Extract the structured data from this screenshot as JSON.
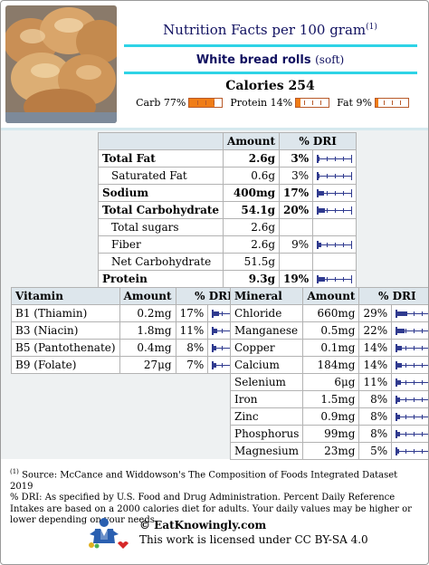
{
  "header": {
    "title": "Nutrition Facts per 100 gram",
    "title_ref": "(1)",
    "food_name": "White bread rolls",
    "food_variant": "(soft)",
    "calories": "Calories 254",
    "macros": [
      {
        "label": "Carb 77%",
        "percent": 77,
        "color": "#f07c16"
      },
      {
        "label": "Protein 14%",
        "percent": 14,
        "color": "#f07c16"
      },
      {
        "label": "Fat 9%",
        "percent": 9,
        "color": "#f07c16"
      }
    ]
  },
  "main_table": {
    "headers": [
      "",
      "Amount",
      "% DRI"
    ],
    "rows": [
      {
        "name": "Total Fat",
        "amount": "2.6g",
        "dri": "3%",
        "dri_value": 3,
        "bold": true,
        "indent": false
      },
      {
        "name": "Saturated Fat",
        "amount": "0.6g",
        "dri": "3%",
        "dri_value": 3,
        "bold": false,
        "indent": true
      },
      {
        "name": "Sodium",
        "amount": "400mg",
        "dri": "17%",
        "dri_value": 17,
        "bold": true,
        "indent": false
      },
      {
        "name": "Total Carbohydrate",
        "amount": "54.1g",
        "dri": "20%",
        "dri_value": 20,
        "bold": true,
        "indent": false
      },
      {
        "name": "Total sugars",
        "amount": "2.6g",
        "dri": "",
        "dri_value": null,
        "bold": false,
        "indent": true
      },
      {
        "name": "Fiber",
        "amount": "2.6g",
        "dri": "9%",
        "dri_value": 9,
        "bold": false,
        "indent": true
      },
      {
        "name": "Net Carbohydrate",
        "amount": "51.5g",
        "dri": "",
        "dri_value": null,
        "bold": false,
        "indent": true
      },
      {
        "name": "Protein",
        "amount": "9.3g",
        "dri": "19%",
        "dri_value": 19,
        "bold": true,
        "indent": false
      }
    ]
  },
  "vitamin_table": {
    "headers": [
      "Vitamin",
      "Amount",
      "% DRI"
    ],
    "rows": [
      {
        "name": "B1 (Thiamin)",
        "amount": "0.2mg",
        "dri": "17%",
        "dri_value": 17
      },
      {
        "name": "B3 (Niacin)",
        "amount": "1.8mg",
        "dri": "11%",
        "dri_value": 11
      },
      {
        "name": "B5 (Pantothenate)",
        "amount": "0.4mg",
        "dri": "8%",
        "dri_value": 8
      },
      {
        "name": "B9 (Folate)",
        "amount": "27μg",
        "dri": "7%",
        "dri_value": 7
      }
    ]
  },
  "mineral_table": {
    "headers": [
      "Mineral",
      "Amount",
      "% DRI"
    ],
    "rows": [
      {
        "name": "Chloride",
        "amount": "660mg",
        "dri": "29%",
        "dri_value": 29
      },
      {
        "name": "Manganese",
        "amount": "0.5mg",
        "dri": "22%",
        "dri_value": 22
      },
      {
        "name": "Copper",
        "amount": "0.1mg",
        "dri": "14%",
        "dri_value": 14
      },
      {
        "name": "Calcium",
        "amount": "184mg",
        "dri": "14%",
        "dri_value": 14
      },
      {
        "name": "Selenium",
        "amount": "6μg",
        "dri": "11%",
        "dri_value": 11
      },
      {
        "name": "Iron",
        "amount": "1.5mg",
        "dri": "8%",
        "dri_value": 8
      },
      {
        "name": "Zinc",
        "amount": "0.9mg",
        "dri": "8%",
        "dri_value": 8
      },
      {
        "name": "Phosphorus",
        "amount": "99mg",
        "dri": "8%",
        "dri_value": 8
      },
      {
        "name": "Magnesium",
        "amount": "23mg",
        "dri": "5%",
        "dri_value": 5
      }
    ]
  },
  "footnotes": {
    "ref_mark": "(1)",
    "source": " Source: McCance and Widdowson's The Composition of Foods Integrated Dataset 2019",
    "dri_note": "% DRI: As specified by U.S. Food and Drug Administration. Percent Daily Reference Intakes are based on a 2000 calories diet for adults. Your daily values may be higher or lower depending on your needs."
  },
  "footer": {
    "site": "© EatKnowingly.com",
    "license": "This work is licensed under CC BY-SA 4.0"
  },
  "colors": {
    "accent_line": "#2ed3e6",
    "dri_bar": "#2f3a8f",
    "macro_bar": "#f07c16"
  }
}
